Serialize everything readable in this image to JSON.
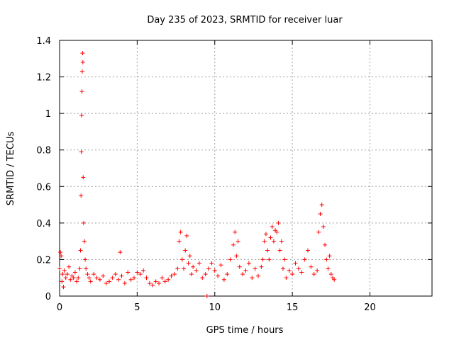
{
  "chart_data": {
    "type": "scatter",
    "title": "Day 235 of 2023, SRMTID for receiver luar",
    "xlabel": "GPS time / hours",
    "ylabel": "SRMTID / TECUs",
    "xlim": [
      0,
      24
    ],
    "ylim": [
      0,
      1.4
    ],
    "x_ticks": [
      0,
      5,
      10,
      15,
      20
    ],
    "x_tick_labels": [
      "0",
      "5",
      "10",
      "15",
      "20"
    ],
    "y_ticks": [
      0,
      0.2,
      0.4,
      0.6,
      0.8,
      1.0,
      1.2,
      1.4
    ],
    "y_tick_labels": [
      "0",
      "0.2",
      "0.4",
      "0.6",
      "0.8",
      "1",
      "1.2",
      "1.4"
    ],
    "grid": true,
    "marker": "plus",
    "color": "#ff0000",
    "series": [
      {
        "name": "SRMTID",
        "x": [
          0.0,
          0.05,
          0.1,
          0.15,
          0.2,
          0.25,
          0.3,
          0.4,
          0.5,
          0.6,
          0.7,
          0.8,
          0.9,
          1.0,
          1.1,
          1.2,
          1.3,
          1.35,
          1.38,
          1.4,
          1.42,
          1.44,
          1.46,
          1.48,
          1.5,
          1.52,
          1.55,
          1.6,
          1.65,
          1.7,
          1.8,
          1.9,
          2.0,
          2.2,
          2.4,
          2.6,
          2.8,
          3.0,
          3.2,
          3.4,
          3.6,
          3.8,
          3.9,
          4.0,
          4.2,
          4.4,
          4.6,
          4.8,
          5.0,
          5.2,
          5.4,
          5.6,
          5.8,
          6.0,
          6.2,
          6.4,
          6.6,
          6.8,
          7.0,
          7.2,
          7.4,
          7.6,
          7.7,
          7.8,
          7.9,
          8.0,
          8.1,
          8.2,
          8.3,
          8.4,
          8.5,
          8.6,
          8.8,
          9.0,
          9.2,
          9.4,
          9.5,
          9.6,
          9.8,
          10.0,
          10.2,
          10.4,
          10.6,
          10.8,
          11.0,
          11.2,
          11.3,
          11.4,
          11.5,
          11.6,
          11.8,
          12.0,
          12.2,
          12.4,
          12.6,
          12.8,
          13.0,
          13.1,
          13.2,
          13.3,
          13.4,
          13.5,
          13.6,
          13.7,
          13.8,
          13.9,
          14.0,
          14.1,
          14.2,
          14.3,
          14.4,
          14.5,
          14.6,
          14.8,
          15.0,
          15.2,
          15.4,
          15.6,
          15.8,
          16.0,
          16.2,
          16.4,
          16.6,
          16.7,
          16.8,
          16.9,
          17.0,
          17.1,
          17.2,
          17.3,
          17.4,
          17.5,
          17.6,
          17.7
        ],
        "y": [
          0.15,
          0.24,
          0.22,
          0.08,
          0.12,
          0.05,
          0.14,
          0.1,
          0.12,
          0.16,
          0.09,
          0.11,
          0.1,
          0.13,
          0.08,
          0.1,
          0.15,
          0.25,
          0.55,
          0.79,
          0.99,
          1.12,
          1.23,
          1.33,
          1.28,
          0.65,
          0.4,
          0.3,
          0.2,
          0.15,
          0.12,
          0.1,
          0.08,
          0.12,
          0.1,
          0.09,
          0.11,
          0.07,
          0.08,
          0.1,
          0.12,
          0.09,
          0.24,
          0.11,
          0.07,
          0.13,
          0.09,
          0.1,
          0.13,
          0.12,
          0.14,
          0.1,
          0.07,
          0.06,
          0.08,
          0.07,
          0.1,
          0.08,
          0.09,
          0.11,
          0.12,
          0.15,
          0.3,
          0.35,
          0.2,
          0.15,
          0.25,
          0.33,
          0.18,
          0.22,
          0.12,
          0.16,
          0.14,
          0.18,
          0.1,
          0.12,
          0.0,
          0.15,
          0.18,
          0.14,
          0.11,
          0.17,
          0.09,
          0.12,
          0.2,
          0.28,
          0.35,
          0.22,
          0.3,
          0.16,
          0.12,
          0.14,
          0.18,
          0.1,
          0.15,
          0.11,
          0.16,
          0.2,
          0.3,
          0.34,
          0.25,
          0.2,
          0.32,
          0.38,
          0.3,
          0.36,
          0.35,
          0.4,
          0.25,
          0.3,
          0.15,
          0.2,
          0.1,
          0.14,
          0.12,
          0.18,
          0.15,
          0.13,
          0.2,
          0.25,
          0.16,
          0.12,
          0.14,
          0.35,
          0.45,
          0.5,
          0.38,
          0.28,
          0.2,
          0.15,
          0.22,
          0.12,
          0.1,
          0.09
        ]
      }
    ]
  }
}
